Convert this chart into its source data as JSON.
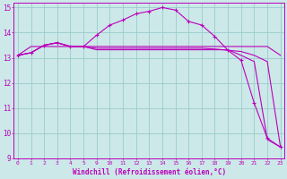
{
  "background_color": "#cce8e8",
  "grid_color": "#99cccc",
  "line_color": "#bb00bb",
  "xlim_indices": [
    0,
    20
  ],
  "ylim": [
    9,
    15.2
  ],
  "xlabel": "Windchill (Refroidissement éolien,°C)",
  "xtick_labels": [
    "0",
    "1",
    "2",
    "3",
    "4",
    "5",
    "9",
    "10",
    "11",
    "12",
    "13",
    "14",
    "15",
    "16",
    "17",
    "18",
    "19",
    "20",
    "21",
    "22",
    "23"
  ],
  "ytick_positions": [
    9,
    10,
    11,
    12,
    13,
    14,
    15
  ],
  "series": [
    {
      "y": [
        13.1,
        13.2,
        13.5,
        13.6,
        13.45,
        13.45,
        13.9,
        14.3,
        14.5,
        14.75,
        14.85,
        15.0,
        14.9,
        14.45,
        14.3,
        13.85,
        13.3,
        12.9,
        11.2,
        9.8,
        9.45
      ],
      "marker": "+"
    },
    {
      "y": [
        13.1,
        13.2,
        13.5,
        13.6,
        13.45,
        13.45,
        13.38,
        13.38,
        13.38,
        13.38,
        13.38,
        13.38,
        13.38,
        13.38,
        13.38,
        13.35,
        13.3,
        13.25,
        13.1,
        12.85,
        9.45
      ],
      "marker": null
    },
    {
      "y": [
        13.1,
        13.2,
        13.5,
        13.6,
        13.45,
        13.45,
        13.32,
        13.32,
        13.32,
        13.32,
        13.32,
        13.32,
        13.32,
        13.32,
        13.32,
        13.32,
        13.32,
        13.1,
        12.85,
        9.75,
        9.45
      ],
      "marker": null
    },
    {
      "y": [
        13.1,
        13.45,
        13.45,
        13.45,
        13.45,
        13.45,
        13.45,
        13.45,
        13.45,
        13.45,
        13.45,
        13.45,
        13.45,
        13.45,
        13.45,
        13.45,
        13.45,
        13.45,
        13.45,
        13.45,
        13.1
      ],
      "marker": null
    }
  ]
}
